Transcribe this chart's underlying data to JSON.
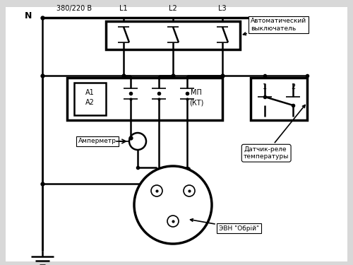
{
  "bg_color": "#d8d8d8",
  "inner_bg": "#ffffff",
  "line_color": "#000000",
  "title_N": "N",
  "title_voltage": "380/220 В",
  "label_L1": "L1",
  "label_L2": "L2",
  "label_L3": "L3",
  "label_avt": "Автоматический\nвыключатель",
  "label_MP": "МП\n(КТ)",
  "label_A1A2": "A1\nA2",
  "label_ammeter": "Амперметр",
  "label_sensor": "Датчик-реле\nтемпературы",
  "label_evn": "ЭВН \"Обрій\"",
  "label_1": "1",
  "label_2": "2",
  "figw": 5.0,
  "figh": 3.75,
  "dpi": 100
}
